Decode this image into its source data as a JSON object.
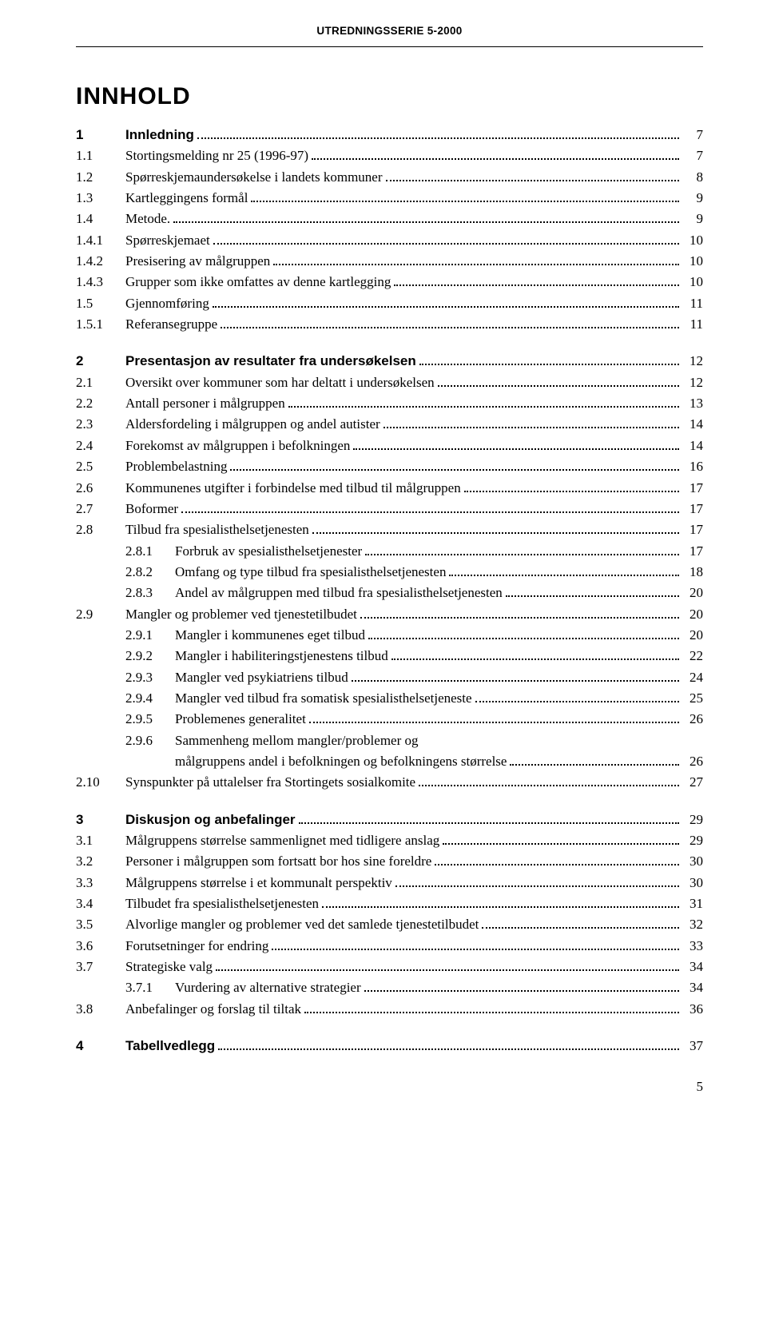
{
  "header": "UTREDNINGSSERIE 5-2000",
  "title": "INNHOLD",
  "page_number": "5",
  "entries": [
    {
      "num": "1",
      "label": "Innledning",
      "page": "7",
      "bold": true,
      "indent": 0
    },
    {
      "num": "1.1",
      "label": "Stortingsmelding nr 25 (1996-97)",
      "page": "7",
      "bold": false,
      "indent": 0
    },
    {
      "num": "1.2",
      "label": "Spørreskjemaundersøkelse i landets kommuner",
      "page": "8",
      "bold": false,
      "indent": 0
    },
    {
      "num": "1.3",
      "label": "Kartleggingens formål",
      "page": "9",
      "bold": false,
      "indent": 0
    },
    {
      "num": "1.4",
      "label": "Metode.",
      "page": "9",
      "bold": false,
      "indent": 0
    },
    {
      "num": "1.4.1",
      "label": "Spørreskjemaet",
      "page": "10",
      "bold": false,
      "indent": 0
    },
    {
      "num": "1.4.2",
      "label": "Presisering av målgruppen",
      "page": "10",
      "bold": false,
      "indent": 0
    },
    {
      "num": "1.4.3",
      "label": "Grupper som ikke omfattes av denne kartlegging",
      "page": "10",
      "bold": false,
      "indent": 0
    },
    {
      "num": "1.5",
      "label": "Gjennomføring",
      "page": "11",
      "bold": false,
      "indent": 0
    },
    {
      "num": "1.5.1",
      "label": "Referansegruppe",
      "page": "11",
      "bold": false,
      "indent": 0
    },
    {
      "type": "gap"
    },
    {
      "num": "2",
      "label": "Presentasjon av resultater fra undersøkelsen",
      "page": "12",
      "bold": true,
      "indent": 0
    },
    {
      "num": "2.1",
      "label": "Oversikt over kommuner som har deltatt i undersøkelsen",
      "page": "12",
      "bold": false,
      "indent": 0
    },
    {
      "num": "2.2",
      "label": "Antall personer i målgruppen",
      "page": "13",
      "bold": false,
      "indent": 0
    },
    {
      "num": "2.3",
      "label": "Aldersfordeling i målgruppen og andel autister",
      "page": "14",
      "bold": false,
      "indent": 0
    },
    {
      "num": "2.4",
      "label": "Forekomst av målgruppen i befolkningen",
      "page": "14",
      "bold": false,
      "indent": 0
    },
    {
      "num": "2.5",
      "label": "Problembelastning",
      "page": "16",
      "bold": false,
      "indent": 0
    },
    {
      "num": "2.6",
      "label": "Kommunenes utgifter i forbindelse med tilbud til målgruppen",
      "page": "17",
      "bold": false,
      "indent": 0
    },
    {
      "num": "2.7",
      "label": "Boformer",
      "page": "17",
      "bold": false,
      "indent": 0
    },
    {
      "num": "2.8",
      "label": "Tilbud fra spesialisthelsetjenesten",
      "page": "17",
      "bold": false,
      "indent": 0
    },
    {
      "num": "2.8.1",
      "label": "Forbruk av spesialisthelsetjenester",
      "page": "17",
      "bold": false,
      "indent": 1
    },
    {
      "num": "2.8.2",
      "label": "Omfang og type tilbud fra spesialisthelsetjenesten",
      "page": "18",
      "bold": false,
      "indent": 1
    },
    {
      "num": "2.8.3",
      "label": "Andel av målgruppen med tilbud fra spesialisthelsetjenesten",
      "page": "20",
      "bold": false,
      "indent": 1
    },
    {
      "num": "2.9",
      "label": "Mangler og problemer ved tjenestetilbudet",
      "page": "20",
      "bold": false,
      "indent": 0
    },
    {
      "num": "2.9.1",
      "label": "Mangler i kommunenes eget tilbud",
      "page": "20",
      "bold": false,
      "indent": 1
    },
    {
      "num": "2.9.2",
      "label": "Mangler i habiliteringstjenestens tilbud",
      "page": "22",
      "bold": false,
      "indent": 1
    },
    {
      "num": "2.9.3",
      "label": "Mangler ved psykiatriens tilbud",
      "page": "24",
      "bold": false,
      "indent": 1
    },
    {
      "num": "2.9.4",
      "label": "Mangler ved tilbud fra somatisk spesialisthelsetjeneste",
      "page": "25",
      "bold": false,
      "indent": 1
    },
    {
      "num": "2.9.5",
      "label": "Problemenes generalitet",
      "page": "26",
      "bold": false,
      "indent": 1
    },
    {
      "num": "2.9.6",
      "label": "Sammenheng mellom mangler/problemer og",
      "page": "",
      "bold": false,
      "indent": 1,
      "noleader": true
    },
    {
      "num": "",
      "label": "målgruppens andel i befolkningen og befolkningens størrelse",
      "page": "26",
      "bold": false,
      "indent": 1,
      "continuation": true
    },
    {
      "num": "2.10",
      "label": "Synspunkter på uttalelser fra Stortingets sosialkomite",
      "page": "27",
      "bold": false,
      "indent": 0
    },
    {
      "type": "gap"
    },
    {
      "num": "3",
      "label": "Diskusjon og anbefalinger",
      "page": "29",
      "bold": true,
      "indent": 0
    },
    {
      "num": "3.1",
      "label": "Målgruppens størrelse sammenlignet med tidligere anslag",
      "page": "29",
      "bold": false,
      "indent": 0
    },
    {
      "num": "3.2",
      "label": "Personer i målgruppen som fortsatt bor hos sine foreldre",
      "page": "30",
      "bold": false,
      "indent": 0
    },
    {
      "num": "3.3",
      "label": "Målgruppens størrelse i et kommunalt perspektiv",
      "page": "30",
      "bold": false,
      "indent": 0
    },
    {
      "num": "3.4",
      "label": "Tilbudet fra spesialisthelsetjenesten",
      "page": "31",
      "bold": false,
      "indent": 0
    },
    {
      "num": "3.5",
      "label": "Alvorlige mangler og problemer ved det samlede tjenestetilbudet",
      "page": "32",
      "bold": false,
      "indent": 0
    },
    {
      "num": "3.6",
      "label": "Forutsetninger for endring",
      "page": "33",
      "bold": false,
      "indent": 0
    },
    {
      "num": "3.7",
      "label": "Strategiske valg",
      "page": "34",
      "bold": false,
      "indent": 0
    },
    {
      "num": "3.7.1",
      "label": "Vurdering av alternative strategier",
      "page": "34",
      "bold": false,
      "indent": 1
    },
    {
      "num": "3.8",
      "label": "Anbefalinger og forslag til tiltak",
      "page": "36",
      "bold": false,
      "indent": 0
    },
    {
      "type": "gap"
    },
    {
      "num": "4",
      "label": "Tabellvedlegg",
      "page": "37",
      "bold": true,
      "indent": 0
    }
  ]
}
